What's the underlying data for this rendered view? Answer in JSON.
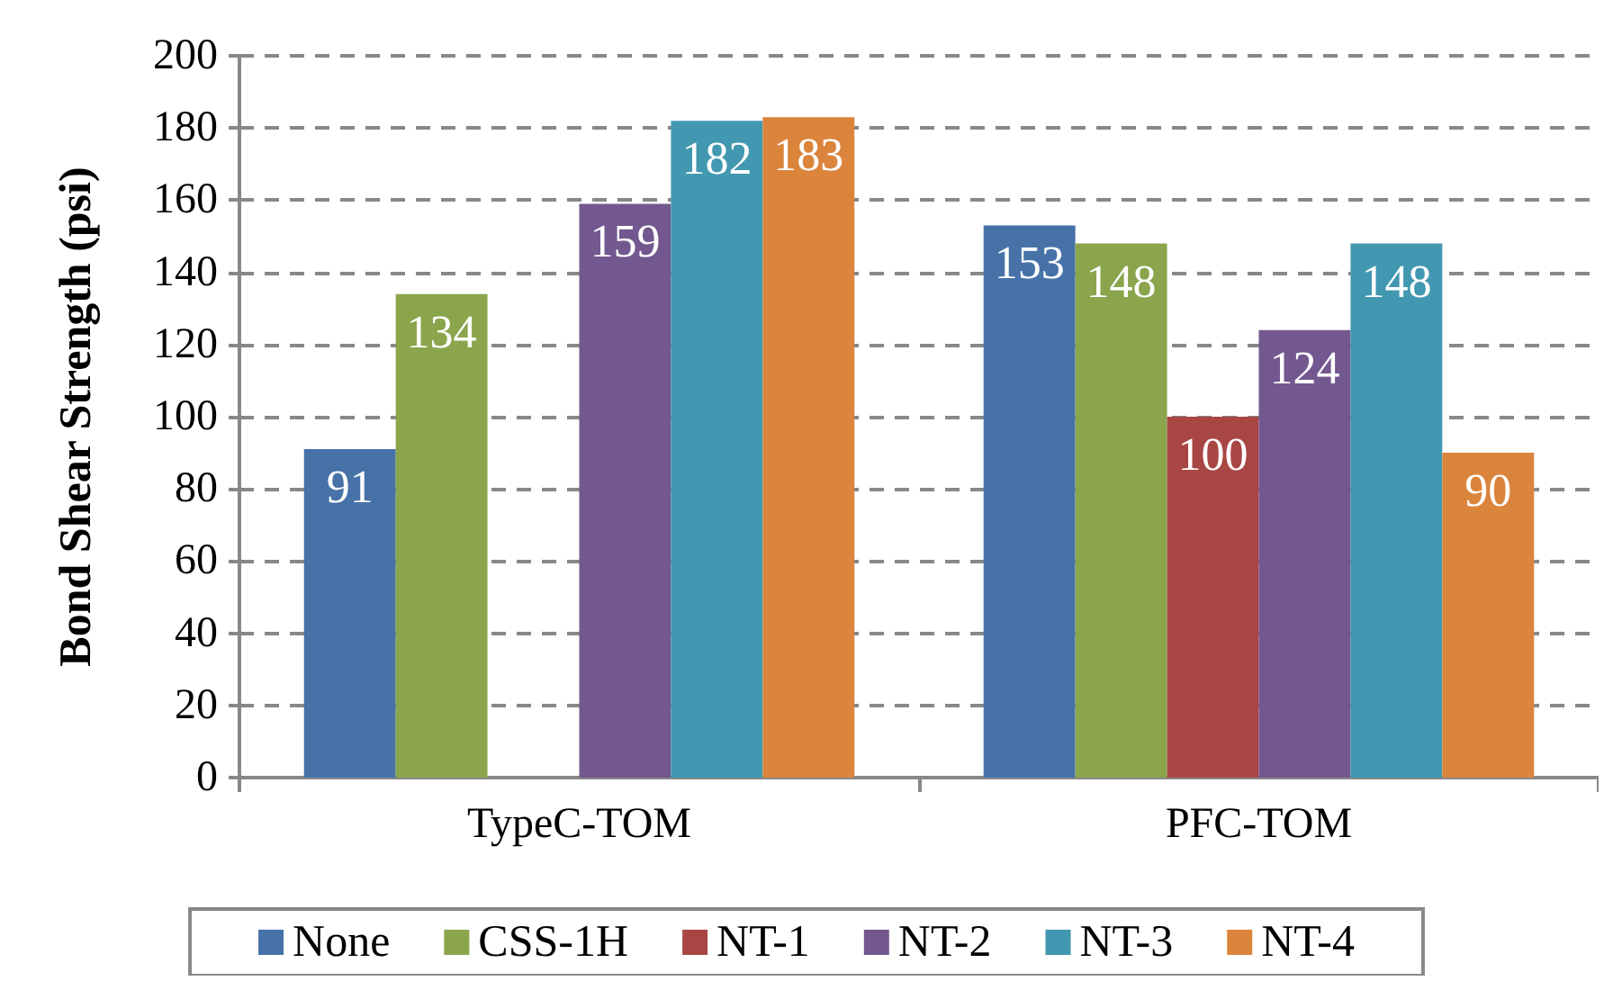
{
  "chart_data": {
    "type": "bar",
    "ylabel": "Bond Shear Strength (psi)",
    "categories": [
      "TypeC-TOM",
      "PFC-TOM"
    ],
    "series": [
      {
        "name": "None",
        "color": "#4672a8",
        "values": [
          91,
          153
        ]
      },
      {
        "name": "CSS-1H",
        "color": "#8aa54c",
        "values": [
          134,
          148
        ]
      },
      {
        "name": "NT-1",
        "color": "#a84644",
        "values": [
          null,
          100
        ]
      },
      {
        "name": "NT-2",
        "color": "#72588e",
        "values": [
          159,
          124
        ]
      },
      {
        "name": "NT-3",
        "color": "#4298b0",
        "values": [
          182,
          148
        ]
      },
      {
        "name": "NT-4",
        "color": "#db843c",
        "values": [
          183,
          90
        ]
      }
    ],
    "ylim": [
      0,
      200
    ],
    "yticks": [
      0,
      20,
      40,
      60,
      80,
      100,
      120,
      140,
      160,
      180,
      200
    ],
    "grid": "y",
    "legend": "bottom",
    "data_labels": true
  }
}
